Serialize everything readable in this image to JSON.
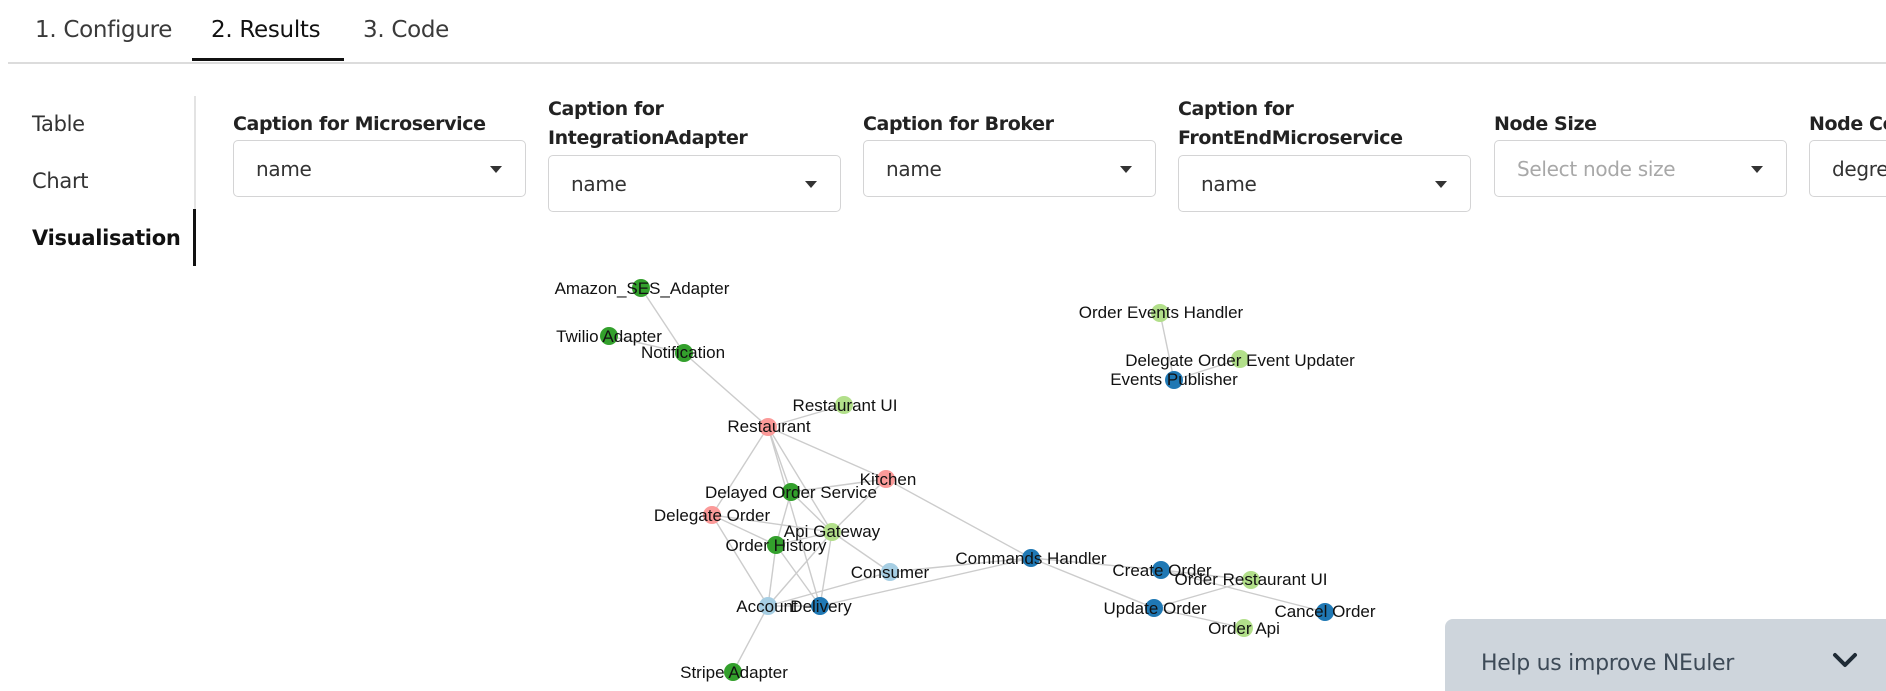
{
  "top_tabs": [
    {
      "label": "1. Configure",
      "active": false
    },
    {
      "label": "2. Results",
      "active": true
    },
    {
      "label": "3. Code",
      "active": false
    }
  ],
  "side_nav": [
    {
      "label": "Table",
      "active": false
    },
    {
      "label": "Chart",
      "active": false
    },
    {
      "label": "Visualisation",
      "active": true
    }
  ],
  "fields": [
    {
      "label_lines": [
        "Caption for Microservice"
      ],
      "value": "name",
      "placeholder": false
    },
    {
      "label_lines": [
        "Caption for",
        "IntegrationAdapter"
      ],
      "value": "name",
      "placeholder": false
    },
    {
      "label_lines": [
        "Caption for Broker"
      ],
      "value": "name",
      "placeholder": false
    },
    {
      "label_lines": [
        "Caption for",
        "FrontEndMicroservice"
      ],
      "value": "name",
      "placeholder": false
    },
    {
      "label_lines": [
        "Node Size"
      ],
      "value": "Select node size",
      "placeholder": true
    },
    {
      "label_lines": [
        "Node Co"
      ],
      "value": "degre",
      "placeholder": false
    }
  ],
  "colors": {
    "dark_green": "#33a02c",
    "light_green": "#b2df8a",
    "dark_blue": "#1f78b4",
    "light_blue": "#a6cee3",
    "pink": "#fb9a99",
    "edge": "#cccccc"
  },
  "graph": {
    "nodes": [
      {
        "id": "amazon",
        "label": "Amazon_SES_Adapter",
        "color": "dark_green"
      },
      {
        "id": "twilio",
        "label": "Twilio Adapter",
        "color": "dark_green"
      },
      {
        "id": "notification",
        "label": "Notification",
        "color": "dark_green"
      },
      {
        "id": "restaurant_ui",
        "label": "Restaurant UI",
        "color": "light_green"
      },
      {
        "id": "restaurant",
        "label": "Restaurant",
        "color": "pink"
      },
      {
        "id": "kitchen",
        "label": "Kitchen",
        "color": "pink"
      },
      {
        "id": "delayed",
        "label": "Delayed Order Service",
        "color": "dark_green"
      },
      {
        "id": "delegate_order",
        "label": "Delegate Order",
        "color": "pink"
      },
      {
        "id": "api_gateway",
        "label": "Api Gateway",
        "color": "light_green"
      },
      {
        "id": "order_history",
        "label": "Order History",
        "color": "dark_green"
      },
      {
        "id": "consumer",
        "label": "Consumer",
        "color": "light_blue"
      },
      {
        "id": "account",
        "label": "Account",
        "color": "light_blue"
      },
      {
        "id": "delivery",
        "label": "Delivery",
        "color": "dark_blue"
      },
      {
        "id": "stripe",
        "label": "Stripe Adapter",
        "color": "dark_green"
      },
      {
        "id": "commands",
        "label": "Commands Handler",
        "color": "dark_blue"
      },
      {
        "id": "order_events",
        "label": "Order Events Handler",
        "color": "light_green"
      },
      {
        "id": "delegate_event",
        "label": "Delegate Order Event Updater",
        "color": "light_green"
      },
      {
        "id": "events_pub",
        "label": "Events Publisher",
        "color": "dark_blue"
      },
      {
        "id": "create_order",
        "label": "Create Order",
        "color": "dark_blue"
      },
      {
        "id": "order_rest_ui",
        "label": "Order Restaurant UI",
        "color": "light_green"
      },
      {
        "id": "update_order",
        "label": "Update Order",
        "color": "dark_blue"
      },
      {
        "id": "cancel_order",
        "label": "Cancel Order",
        "color": "dark_blue"
      },
      {
        "id": "order_api",
        "label": "Order Api",
        "color": "light_green"
      }
    ],
    "edges": [
      [
        "amazon",
        "notification"
      ],
      [
        "twilio",
        "notification"
      ],
      [
        "notification",
        "restaurant"
      ],
      [
        "restaurant",
        "restaurant_ui"
      ],
      [
        "restaurant",
        "kitchen"
      ],
      [
        "restaurant",
        "delayed"
      ],
      [
        "restaurant",
        "delegate_order"
      ],
      [
        "restaurant",
        "api_gateway"
      ],
      [
        "restaurant",
        "delivery"
      ],
      [
        "kitchen",
        "api_gateway"
      ],
      [
        "kitchen",
        "delayed"
      ],
      [
        "kitchen",
        "commands"
      ],
      [
        "delayed",
        "api_gateway"
      ],
      [
        "delayed",
        "order_history"
      ],
      [
        "delegate_order",
        "order_history"
      ],
      [
        "delegate_order",
        "api_gateway"
      ],
      [
        "delegate_order",
        "account"
      ],
      [
        "api_gateway",
        "order_history"
      ],
      [
        "api_gateway",
        "consumer"
      ],
      [
        "api_gateway",
        "account"
      ],
      [
        "api_gateway",
        "delivery"
      ],
      [
        "order_history",
        "account"
      ],
      [
        "order_history",
        "delivery"
      ],
      [
        "consumer",
        "account"
      ],
      [
        "consumer",
        "commands"
      ],
      [
        "account",
        "delivery"
      ],
      [
        "account",
        "stripe"
      ],
      [
        "delivery",
        "commands"
      ],
      [
        "commands",
        "create_order"
      ],
      [
        "commands",
        "update_order"
      ],
      [
        "create_order",
        "order_rest_ui"
      ],
      [
        "create_order",
        "cancel_order"
      ],
      [
        "update_order",
        "order_api"
      ],
      [
        "update_order",
        "order_rest_ui"
      ],
      [
        "order_events",
        "events_pub"
      ],
      [
        "delegate_event",
        "events_pub"
      ]
    ]
  },
  "feedback": {
    "title": "Help us improve NEuler"
  }
}
